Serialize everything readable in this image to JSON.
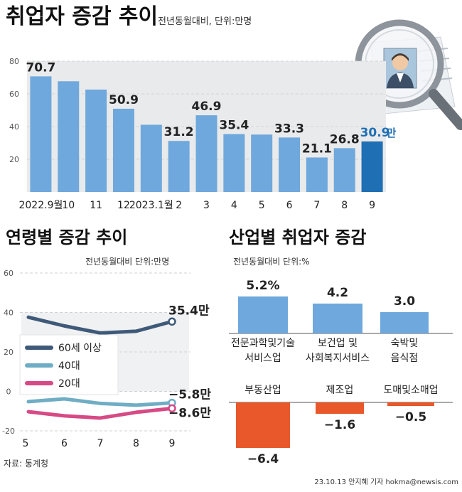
{
  "main": {
    "title": "취업자 증감 추이",
    "subtitle": "전년동월대비, 단위:만명",
    "chart_data": {
      "type": "bar",
      "categories": [
        "2022.9월",
        "10",
        "11",
        "12",
        "2023.1월",
        "2",
        "3",
        "4",
        "5",
        "6",
        "7",
        "8",
        "9"
      ],
      "values": [
        70.7,
        67.7,
        62.6,
        50.9,
        41.1,
        31.2,
        46.9,
        35.4,
        35.1,
        33.3,
        21.1,
        26.8,
        30.9
      ],
      "labels": [
        "70.7",
        "",
        "",
        "50.9",
        "",
        "31.2",
        "46.9",
        "35.4",
        "",
        "33.3",
        "21.1",
        "26.8",
        "30.9"
      ],
      "highlight_last_unit": "만",
      "yticks": [
        20,
        40,
        60,
        80
      ],
      "ylim": [
        0,
        80
      ],
      "colors": {
        "bar": "#6fa8dc",
        "highlight": "#1f6fb5",
        "highlight_label": "#1f6fb5"
      }
    }
  },
  "age": {
    "title": "연령별 증감 추이",
    "subtitle": "전년동월대비 단위:만명",
    "chart_data": {
      "type": "line",
      "x": [
        "5",
        "6",
        "7",
        "8",
        "9"
      ],
      "yticks": [
        60,
        40,
        20,
        0,
        -20
      ],
      "ylim": [
        -20,
        60
      ],
      "series": [
        {
          "name": "60세 이상",
          "values": [
            37.6,
            33.2,
            29.6,
            30.5,
            35.4
          ],
          "color": "#3f5a79",
          "end_label": "35.4만"
        },
        {
          "name": "40대",
          "values": [
            -5.2,
            -3.8,
            -6.1,
            -7.0,
            -5.8
          ],
          "color": "#6fadc4",
          "end_label": "−5.8만"
        },
        {
          "name": "20대",
          "values": [
            -10.3,
            -12.4,
            -13.5,
            -10.6,
            -8.6
          ],
          "color": "#d64a85",
          "end_label": "−8.6만"
        }
      ]
    }
  },
  "industry": {
    "title": "산업별 취업자 증감",
    "subtitle": "전년동월대비 단위:%",
    "chart_data": {
      "type": "bar",
      "categories": [
        "전문과학및기술\n서비스업",
        "보건업 및\n사회복지서비스",
        "숙박및\n음식점",
        "부동산업",
        "제조업",
        "도매및소매업"
      ],
      "values": [
        5.2,
        4.2,
        3.0,
        -6.4,
        -1.6,
        -0.5
      ],
      "labels": [
        "5.2%",
        "4.2",
        "3.0",
        "−6.4",
        "−1.6",
        "−0.5"
      ],
      "colors": {
        "positive": "#6fa8dc",
        "negative": "#e8582a"
      }
    }
  },
  "footer": {
    "source": "자료: 통계청",
    "credit": "23.10.13 안지혜 기자 hokma@newsis.com"
  }
}
